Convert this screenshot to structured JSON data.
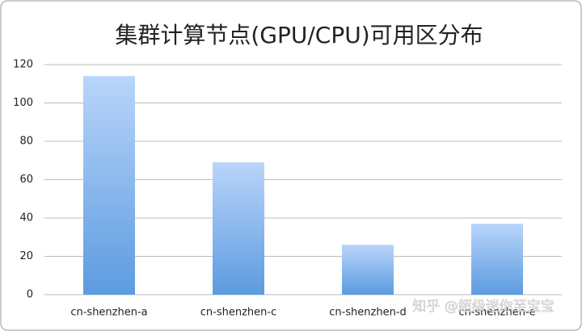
{
  "chart_data": {
    "type": "bar",
    "title": "集群计算节点(GPU/CPU)可用区分布",
    "categories": [
      "cn-shenzhen-a",
      "cn-shenzhen-c",
      "cn-shenzhen-d",
      "cn-shenzhen-e"
    ],
    "values": [
      114,
      69,
      26,
      37
    ],
    "color": "#5c9be0",
    "ylim": [
      0,
      120
    ],
    "yticks": [
      0,
      20,
      40,
      60,
      80,
      100,
      120
    ],
    "grid": true,
    "watermark": "知乎 @超级迷你至宝宝"
  }
}
